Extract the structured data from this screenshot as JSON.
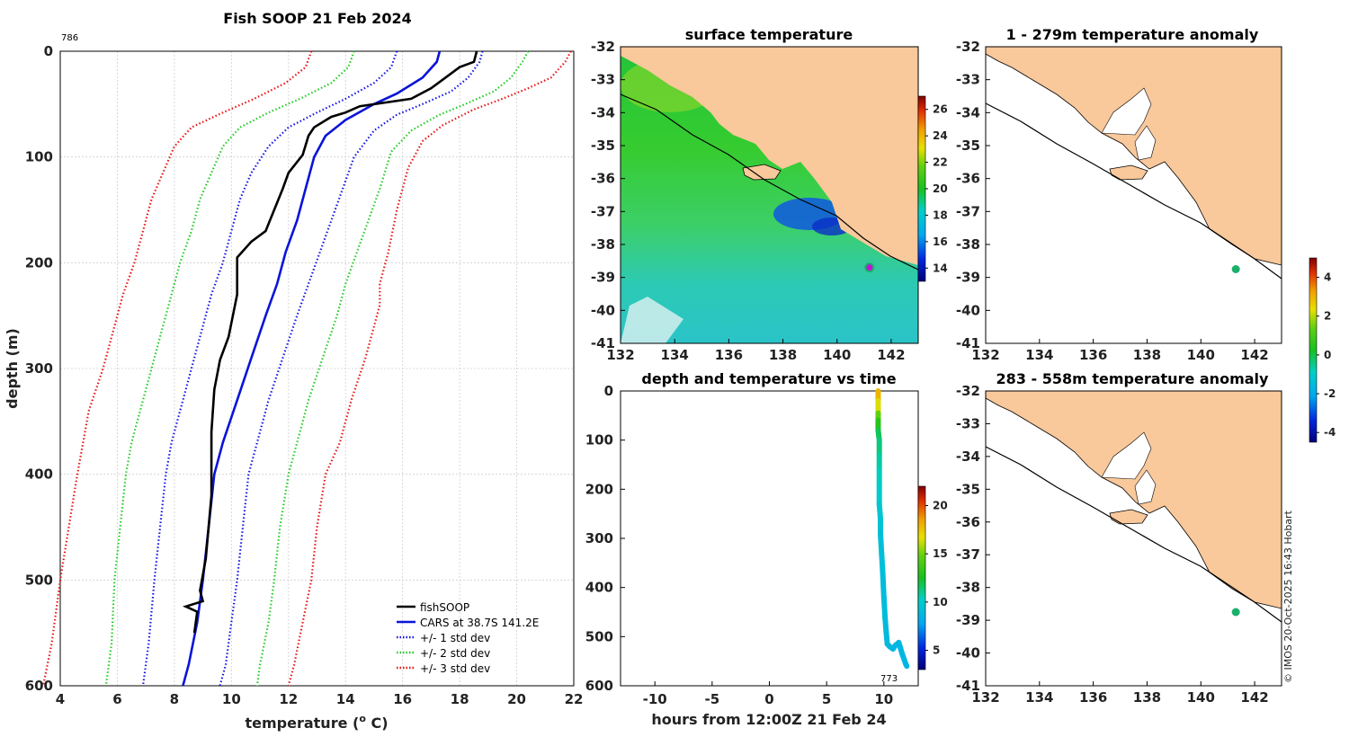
{
  "colors": {
    "land": "#f9c89b",
    "observed": "#000000",
    "cars": "#0a14d8",
    "std1": "#1414e6",
    "std2": "#22cc22",
    "std3": "#e61414",
    "ocean_warm": "#22c33a",
    "ocean_cool": "#27c6c6",
    "marker": "#c014d8",
    "station": "#1bb06a",
    "coast": "#000000"
  },
  "chart_data": [
    {
      "type": "line",
      "title": "Fish SOOP 21 Feb 2024",
      "xlabel": "temperature (",
      "xlabel_sup": "o",
      "xlabel_tail": " C)",
      "ylabel": "depth (m)",
      "xlim": [
        4,
        22
      ],
      "ylim": [
        600,
        0
      ],
      "xticks": [
        "4",
        "6",
        "8",
        "10",
        "12",
        "14",
        "16",
        "18",
        "20",
        "22"
      ],
      "yticks": [
        "0",
        "100",
        "200",
        "300",
        "400",
        "500",
        "600"
      ],
      "profile_id": "786",
      "legend": [
        "fishSOOP",
        "CARS at 38.7S 141.2E",
        "+/- 1 std dev",
        "+/- 2 std dev",
        "+/- 3 std dev"
      ],
      "series": [
        {
          "name": "fishSOOP",
          "style": "solid",
          "color_key": "observed",
          "points": [
            [
              18.6,
              0
            ],
            [
              18.5,
              10
            ],
            [
              18.0,
              15
            ],
            [
              17.5,
              25
            ],
            [
              17.0,
              35
            ],
            [
              16.3,
              45
            ],
            [
              14.5,
              52
            ],
            [
              14,
              58
            ],
            [
              13.5,
              62
            ],
            [
              12.9,
              72
            ],
            [
              12.7,
              80
            ],
            [
              12.5,
              98
            ],
            [
              12,
              115
            ],
            [
              11.8,
              130
            ],
            [
              11.5,
              150
            ],
            [
              11.2,
              170
            ],
            [
              10.7,
              180
            ],
            [
              10.2,
              195
            ],
            [
              10.2,
              230
            ],
            [
              9.9,
              270
            ],
            [
              9.6,
              292
            ],
            [
              9.4,
              320
            ],
            [
              9.3,
              360
            ],
            [
              9.3,
              420
            ],
            [
              9.1,
              480
            ],
            [
              8.9,
              510
            ],
            [
              9.0,
              520
            ],
            [
              8.4,
              525
            ],
            [
              8.8,
              530
            ],
            [
              8.7,
              550
            ]
          ]
        },
        {
          "name": "CARS at 38.7S 141.2E",
          "style": "solid",
          "color_key": "cars",
          "points": [
            [
              17.3,
              0
            ],
            [
              17.2,
              10
            ],
            [
              16.7,
              25
            ],
            [
              15.8,
              40
            ],
            [
              15.0,
              50
            ],
            [
              14.0,
              65
            ],
            [
              13.3,
              80
            ],
            [
              12.9,
              100
            ],
            [
              12.6,
              130
            ],
            [
              12.3,
              160
            ],
            [
              11.9,
              190
            ],
            [
              11.6,
              220
            ],
            [
              11.2,
              250
            ],
            [
              10.7,
              290
            ],
            [
              10.2,
              330
            ],
            [
              9.7,
              370
            ],
            [
              9.4,
              400
            ],
            [
              9.2,
              450
            ],
            [
              9.0,
              500
            ],
            [
              8.8,
              540
            ],
            [
              8.5,
              580
            ],
            [
              8.3,
              600
            ]
          ]
        },
        {
          "name": "+1 std",
          "style": "dotted",
          "color_key": "std1",
          "points": [
            [
              18.8,
              0
            ],
            [
              18.7,
              10
            ],
            [
              18.3,
              25
            ],
            [
              17.7,
              38
            ],
            [
              16.7,
              50
            ],
            [
              15.8,
              60
            ],
            [
              15.0,
              75
            ],
            [
              14.3,
              100
            ],
            [
              13.9,
              130
            ],
            [
              13.5,
              160
            ],
            [
              13.1,
              190
            ],
            [
              12.7,
              220
            ],
            [
              12.3,
              250
            ],
            [
              11.8,
              290
            ],
            [
              11.3,
              330
            ],
            [
              10.9,
              370
            ],
            [
              10.6,
              400
            ],
            [
              10.4,
              450
            ],
            [
              10.2,
              500
            ],
            [
              10.0,
              540
            ],
            [
              9.8,
              580
            ],
            [
              9.6,
              600
            ]
          ]
        },
        {
          "name": "-1 std",
          "style": "dotted",
          "color_key": "std1",
          "points": [
            [
              15.8,
              0
            ],
            [
              15.6,
              15
            ],
            [
              15.0,
              30
            ],
            [
              14.0,
              45
            ],
            [
              13.0,
              58
            ],
            [
              12.0,
              72
            ],
            [
              11.3,
              90
            ],
            [
              10.7,
              115
            ],
            [
              10.3,
              140
            ],
            [
              10.0,
              170
            ],
            [
              9.7,
              200
            ],
            [
              9.3,
              230
            ],
            [
              9.0,
              260
            ],
            [
              8.6,
              300
            ],
            [
              8.2,
              340
            ],
            [
              7.9,
              370
            ],
            [
              7.7,
              400
            ],
            [
              7.5,
              450
            ],
            [
              7.3,
              500
            ],
            [
              7.1,
              560
            ],
            [
              6.9,
              600
            ]
          ]
        },
        {
          "name": "+2 std",
          "style": "dotted",
          "color_key": "std2",
          "points": [
            [
              20.4,
              0
            ],
            [
              20.2,
              10
            ],
            [
              19.8,
              25
            ],
            [
              19.2,
              38
            ],
            [
              18.2,
              50
            ],
            [
              17.3,
              60
            ],
            [
              16.3,
              75
            ],
            [
              15.6,
              95
            ],
            [
              15.2,
              130
            ],
            [
              14.8,
              160
            ],
            [
              14.4,
              190
            ],
            [
              14.0,
              220
            ],
            [
              13.7,
              250
            ],
            [
              13.2,
              290
            ],
            [
              12.7,
              330
            ],
            [
              12.3,
              370
            ],
            [
              12.0,
              400
            ],
            [
              11.7,
              450
            ],
            [
              11.5,
              500
            ],
            [
              11.3,
              540
            ],
            [
              11.0,
              580
            ],
            [
              10.9,
              600
            ]
          ]
        },
        {
          "name": "-2 std",
          "style": "dotted",
          "color_key": "std2",
          "points": [
            [
              14.3,
              0
            ],
            [
              14.1,
              15
            ],
            [
              13.5,
              30
            ],
            [
              12.4,
              45
            ],
            [
              11.3,
              58
            ],
            [
              10.3,
              72
            ],
            [
              9.7,
              90
            ],
            [
              9.3,
              115
            ],
            [
              8.9,
              140
            ],
            [
              8.6,
              170
            ],
            [
              8.2,
              200
            ],
            [
              7.9,
              230
            ],
            [
              7.6,
              260
            ],
            [
              7.2,
              300
            ],
            [
              6.8,
              340
            ],
            [
              6.5,
              370
            ],
            [
              6.3,
              400
            ],
            [
              6.1,
              450
            ],
            [
              5.9,
              500
            ],
            [
              5.8,
              560
            ],
            [
              5.6,
              600
            ]
          ]
        },
        {
          "name": "+3 std",
          "style": "dotted",
          "color_key": "std3",
          "points": [
            [
              21.9,
              0
            ],
            [
              21.7,
              10
            ],
            [
              21.2,
              25
            ],
            [
              20.4,
              35
            ],
            [
              19.5,
              45
            ],
            [
              18.5,
              55
            ],
            [
              17.4,
              70
            ],
            [
              16.7,
              85
            ],
            [
              16.2,
              110
            ],
            [
              15.8,
              150
            ],
            [
              15.5,
              190
            ],
            [
              15.2,
              220
            ],
            [
              15.2,
              240
            ],
            [
              14.7,
              290
            ],
            [
              14.2,
              330
            ],
            [
              13.8,
              370
            ],
            [
              13.3,
              400
            ],
            [
              13.0,
              450
            ],
            [
              12.8,
              500
            ],
            [
              12.5,
              540
            ],
            [
              12.2,
              580
            ],
            [
              12.0,
              600
            ]
          ]
        },
        {
          "name": "-3 std",
          "style": "dotted",
          "color_key": "std3",
          "points": [
            [
              12.8,
              0
            ],
            [
              12.6,
              15
            ],
            [
              11.9,
              30
            ],
            [
              10.8,
              45
            ],
            [
              9.7,
              58
            ],
            [
              8.6,
              72
            ],
            [
              8.0,
              90
            ],
            [
              7.6,
              115
            ],
            [
              7.2,
              140
            ],
            [
              6.9,
              170
            ],
            [
              6.6,
              200
            ],
            [
              6.2,
              230
            ],
            [
              5.9,
              260
            ],
            [
              5.5,
              300
            ],
            [
              5.0,
              340
            ],
            [
              4.8,
              370
            ],
            [
              4.6,
              400
            ],
            [
              4.3,
              450
            ],
            [
              4.0,
              500
            ],
            [
              3.7,
              560
            ],
            [
              3.4,
              600
            ]
          ]
        }
      ]
    },
    {
      "type": "map",
      "title": "surface temperature",
      "xlim": [
        132,
        143
      ],
      "ylim": [
        -41,
        -32
      ],
      "xticks": [
        "132",
        "134",
        "136",
        "138",
        "140",
        "142"
      ],
      "yticks": [
        "-32",
        "-33",
        "-34",
        "-35",
        "-36",
        "-37",
        "-38",
        "-39",
        "-40",
        "-41"
      ],
      "colorbar_ticks": [
        "14",
        "16",
        "18",
        "20",
        "22",
        "24",
        "26"
      ],
      "colorbar_range": [
        13,
        27
      ],
      "vessel_position": {
        "lon": 141.2,
        "lat": -38.7
      }
    },
    {
      "type": "scatter",
      "title": "depth and temperature vs time",
      "xlabel": "hours from 12:00Z 21 Feb 24",
      "xlim": [
        -13,
        13
      ],
      "ylim": [
        600,
        0
      ],
      "xticks": [
        "-10",
        "-5",
        "0",
        "5",
        "10"
      ],
      "yticks": [
        "0",
        "100",
        "200",
        "300",
        "400",
        "500",
        "600"
      ],
      "colorbar_ticks": [
        "5",
        "10",
        "15",
        "20"
      ],
      "colorbar_range": [
        3,
        22
      ],
      "end_label": "773",
      "points": [
        [
          9.5,
          0,
          18.5
        ],
        [
          9.5,
          20,
          17.5
        ],
        [
          9.5,
          45,
          15.5
        ],
        [
          9.5,
          60,
          14
        ],
        [
          9.5,
          80,
          12
        ],
        [
          9.6,
          100,
          11.5
        ],
        [
          9.6,
          130,
          11
        ],
        [
          9.6,
          160,
          10.5
        ],
        [
          9.6,
          190,
          10.2
        ],
        [
          9.6,
          230,
          9.8
        ],
        [
          9.7,
          260,
          9.5
        ],
        [
          9.7,
          290,
          9.3
        ],
        [
          9.8,
          330,
          9.2
        ],
        [
          9.9,
          370,
          9.1
        ],
        [
          10.0,
          420,
          9.0
        ],
        [
          10.1,
          460,
          9.0
        ],
        [
          10.2,
          490,
          8.9
        ],
        [
          10.3,
          515,
          8.8
        ],
        [
          10.5,
          520,
          8.8
        ],
        [
          10.8,
          525,
          8.7
        ],
        [
          11.0,
          518,
          8.7
        ],
        [
          11.3,
          512,
          8.7
        ],
        [
          11.6,
          535,
          8.6
        ],
        [
          11.9,
          555,
          8.6
        ],
        [
          12.0,
          560,
          8.6
        ]
      ]
    },
    {
      "type": "map",
      "title": "1 - 279m temperature anomaly",
      "xlim": [
        132,
        143
      ],
      "ylim": [
        -41,
        -32
      ],
      "xticks": [
        "132",
        "134",
        "136",
        "138",
        "140",
        "142"
      ],
      "yticks": [
        "-32",
        "-33",
        "-34",
        "-35",
        "-36",
        "-37",
        "-38",
        "-39",
        "-40",
        "-41"
      ],
      "station": {
        "lon": 141.3,
        "lat": -38.75
      }
    },
    {
      "type": "map",
      "title": "283 - 558m temperature anomaly",
      "xlim": [
        132,
        143
      ],
      "ylim": [
        -41,
        -32
      ],
      "xticks": [
        "132",
        "134",
        "136",
        "138",
        "140",
        "142"
      ],
      "yticks": [
        "-32",
        "-33",
        "-34",
        "-35",
        "-36",
        "-37",
        "-38",
        "-39",
        "-40",
        "-41"
      ],
      "station": {
        "lon": 141.3,
        "lat": -38.75
      },
      "colorbar_ticks": [
        "-4",
        "-2",
        "0",
        "2",
        "4"
      ],
      "colorbar_range": [
        -4.5,
        5
      ]
    }
  ],
  "footer": "© IMOS 20-Oct-2025 16:43 Hobart"
}
